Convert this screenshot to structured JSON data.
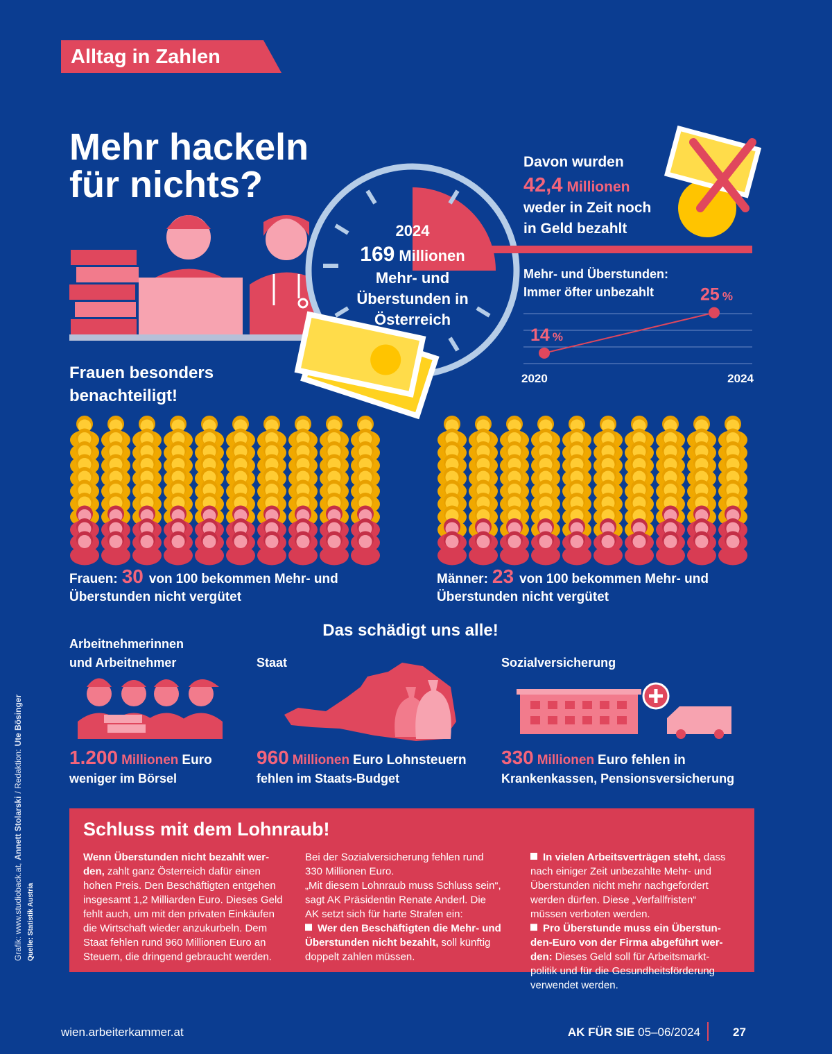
{
  "header": {
    "tag": "Alltag in Zahlen",
    "title": [
      "Mehr hackeln",
      "für nichts?"
    ]
  },
  "clock": {
    "year": "2024",
    "amount": "169",
    "unit": "Millionen",
    "text": [
      "Mehr- und",
      "Überstunden in",
      "Österreich"
    ]
  },
  "unpaid": {
    "intro": "Davon wurden",
    "amount": "42,4",
    "unit": "Millionen",
    "text": [
      "weder in Zeit noch",
      "in Geld bezahlt"
    ]
  },
  "line_chart": {
    "type": "line",
    "title": [
      "Mehr- und Überstunden:",
      "Immer öfter unbezahlt"
    ],
    "x": [
      "2020",
      "2024"
    ],
    "values": [
      14,
      25
    ],
    "unit": "%",
    "ylim": [
      10,
      27
    ],
    "color": "#e0475d"
  },
  "gender": {
    "title": [
      "Frauen besonders",
      "benachteiligt!"
    ],
    "groups": [
      {
        "label": "Frauen:",
        "value": 30,
        "of": "von",
        "total": 100,
        "text": [
          "bekommen Mehr- und",
          "Überstunden nicht vergütet"
        ]
      },
      {
        "label": "Männer:",
        "value": 23,
        "of": "von",
        "total": 100,
        "text": [
          "bekommen Mehr- und",
          "Überstunden nicht vergütet"
        ]
      }
    ]
  },
  "damage": {
    "title": "Das schädigt uns alle!",
    "columns": [
      {
        "heading": [
          "Arbeitnehmerinnen",
          "und Arbeitnehmer"
        ],
        "amount": "1.200",
        "unit": "Millionen",
        "text": [
          "Euro",
          "weniger im Börsel"
        ]
      },
      {
        "heading": [
          "Staat"
        ],
        "amount": "960",
        "unit": "Millionen",
        "text": [
          "Euro Lohnsteuern",
          "fehlen im Staats-Budget"
        ]
      },
      {
        "heading": [
          "Sozialversicherung"
        ],
        "amount": "330",
        "unit": "Millionen",
        "text": [
          "Euro fehlen in",
          "Krankenkassen, Pensionsversicherung"
        ]
      }
    ]
  },
  "box": {
    "title": "Schluss mit dem Lohnraub!",
    "columns": [
      [
        {
          "bold": "Wenn Überstunden nicht bezahlt wer-"
        },
        {
          "bold": "den,",
          "regular": "zahlt ganz Österreich dafür einen"
        },
        {
          "regular": "hohen Preis. Den Beschäftigten entgehen"
        },
        {
          "regular": "insgesamt 1,2 Milliarden Euro. Dieses Geld"
        },
        {
          "regular": "fehlt auch, um mit den privaten Einkäufen"
        },
        {
          "regular": "die Wirtschaft wieder anzukurbeln. Dem"
        },
        {
          "regular": "Staat fehlen rund 960 Millionen Euro an"
        },
        {
          "regular": "Steuern, die dringend gebraucht werden."
        }
      ],
      [
        {
          "regular": "Bei der Sozialversicherung fehlen rund"
        },
        {
          "regular": "330 Millionen Euro."
        },
        {
          "regular": "„Mit diesem Lohnraub muss Schluss sein“,"
        },
        {
          "regular": "sagt AK Präsidentin Renate Anderl. Die"
        },
        {
          "regular": "AK setzt sich für harte Strafen ein:"
        },
        {
          "bullet": true,
          "bold": "Wer den Beschäftigten die Mehr- und"
        },
        {
          "bold": "Überstunden nicht bezahlt,",
          "regular": "soll künftig"
        },
        {
          "regular": "doppelt zahlen müssen."
        }
      ],
      [
        {
          "bullet": true,
          "bold": "In vielen Arbeitsverträgen steht,",
          "regular": "dass"
        },
        {
          "regular": "nach einiger Zeit unbezahlte Mehr- und"
        },
        {
          "regular": "Überstunden nicht mehr nachgefordert"
        },
        {
          "regular": "werden dürfen. Diese „Verfallfristen“"
        },
        {
          "regular": "müssen verboten werden."
        },
        {
          "bullet": true,
          "bold": "Pro Überstunde muss ein Überstun-"
        },
        {
          "bold": "den-Euro von der Firma abgeführt wer-"
        },
        {
          "bold": "den:",
          "regular": "Dieses Geld soll für Arbeitsmarkt-"
        },
        {
          "regular": "politik und für die Gesundheitsförderung"
        },
        {
          "regular": "verwendet werden."
        }
      ]
    ]
  },
  "sidebar": {
    "credit": [
      {
        "regular": "Grafik: www.studioback.at,"
      },
      {
        "bold": "Annett Stolarski"
      },
      {
        "regular": "/ Redaktion:"
      },
      {
        "bold": "Ute Bösinger"
      }
    ],
    "source": "Quelle: Statistik Austria"
  },
  "footer": {
    "url": "wien.arbeiterkammer.at",
    "magazine": "AK FÜR SIE",
    "issue": "05–06/2024",
    "page": "27"
  }
}
